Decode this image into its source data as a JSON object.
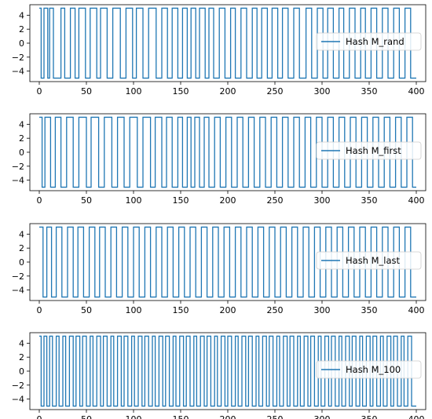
{
  "figure": {
    "line_color": "#1f77b4",
    "axis_color": "#000000"
  },
  "chart_data": [
    {
      "type": "line",
      "title": "",
      "xlabel": "",
      "ylabel": "",
      "xlim": [
        -10,
        410
      ],
      "ylim": [
        -5.5,
        5.5
      ],
      "x_ticks": [
        "0",
        "50",
        "100",
        "150",
        "200",
        "250",
        "300",
        "350",
        "400"
      ],
      "y_ticks": [
        "4",
        "2",
        "0",
        "−2",
        "−4"
      ],
      "grid": false,
      "legend_position": "center-right",
      "series": [
        {
          "name": "Hash M_rand",
          "x_start": 0,
          "x_end": 400,
          "low": -5,
          "high": 5,
          "start_level": "high",
          "transitions": [
            2,
            5,
            9,
            11,
            15,
            23,
            27,
            33,
            38,
            42,
            49,
            54,
            61,
            65,
            72,
            78,
            86,
            92,
            99,
            103,
            110,
            116,
            124,
            130,
            136,
            141,
            147,
            152,
            157,
            161,
            166,
            170,
            176,
            180,
            185,
            191,
            197,
            203,
            208,
            214,
            220,
            226,
            231,
            236,
            242,
            247,
            253,
            258,
            264,
            270,
            276,
            283,
            289,
            295,
            301,
            306,
            312,
            318,
            323,
            329,
            335,
            341,
            346,
            352,
            358,
            364,
            370,
            376,
            382,
            388,
            394
          ]
        },
        {
          "name": "Hash M_first",
          "x_start": 0,
          "x_end": 400,
          "low": -5,
          "high": 5,
          "start_level": "high",
          "transitions": [
            3,
            6,
            12,
            17,
            23,
            29,
            36,
            42,
            50,
            55,
            63,
            69,
            77,
            83,
            90,
            96,
            104,
            110,
            118,
            123,
            130,
            135,
            141,
            147,
            152,
            157,
            161,
            165,
            170,
            175,
            180,
            186,
            192,
            198,
            204,
            210,
            216,
            222,
            228,
            234,
            240,
            246,
            252,
            258,
            264,
            270,
            276,
            282,
            288,
            294,
            300,
            306,
            312,
            318,
            324,
            330,
            336,
            342,
            348,
            354,
            360,
            366,
            372,
            378,
            384,
            390,
            396
          ]
        },
        {
          "name": "Hash M_last",
          "x_start": 0,
          "x_end": 400,
          "low": -5,
          "high": 5,
          "start_level": "high",
          "transitions": [
            4,
            8,
            13,
            18,
            24,
            30,
            36,
            41,
            47,
            53,
            59,
            64,
            70,
            76,
            82,
            88,
            94,
            100,
            106,
            112,
            118,
            124,
            130,
            136,
            142,
            148,
            154,
            160,
            166,
            172,
            178,
            184,
            190,
            196,
            202,
            208,
            214,
            220,
            226,
            232,
            238,
            244,
            250,
            256,
            262,
            268,
            274,
            280,
            286,
            292,
            298,
            304,
            310,
            316,
            322,
            328,
            334,
            340,
            346,
            352,
            358,
            364,
            370,
            376,
            382,
            388,
            394
          ]
        },
        {
          "name": "Hash M_100",
          "x_start": 0,
          "x_end": 400,
          "low": -5,
          "high": 5,
          "start_level": "high",
          "transitions": [
            2,
            5,
            8,
            11,
            14,
            18,
            21,
            25,
            28,
            32,
            36,
            39,
            43,
            46,
            50,
            54,
            57,
            61,
            65,
            68,
            72,
            76,
            79,
            83,
            87,
            90,
            94,
            98,
            101,
            105,
            109,
            112,
            116,
            120,
            123,
            127,
            131,
            134,
            138,
            142,
            145,
            149,
            153,
            156,
            160,
            164,
            167,
            171,
            175,
            178,
            182,
            186,
            189,
            193,
            197,
            200,
            204,
            208,
            211,
            215,
            219,
            222,
            226,
            230,
            233,
            237,
            241,
            244,
            248,
            252,
            255,
            259,
            263,
            266,
            270,
            274,
            277,
            281,
            285,
            288,
            292,
            296,
            299,
            303,
            307,
            310,
            314,
            318,
            321,
            325,
            329,
            332,
            336,
            340,
            343,
            347,
            351,
            354,
            358,
            362,
            365,
            369,
            373,
            376,
            380,
            384,
            387,
            391,
            395
          ]
        }
      ]
    }
  ]
}
